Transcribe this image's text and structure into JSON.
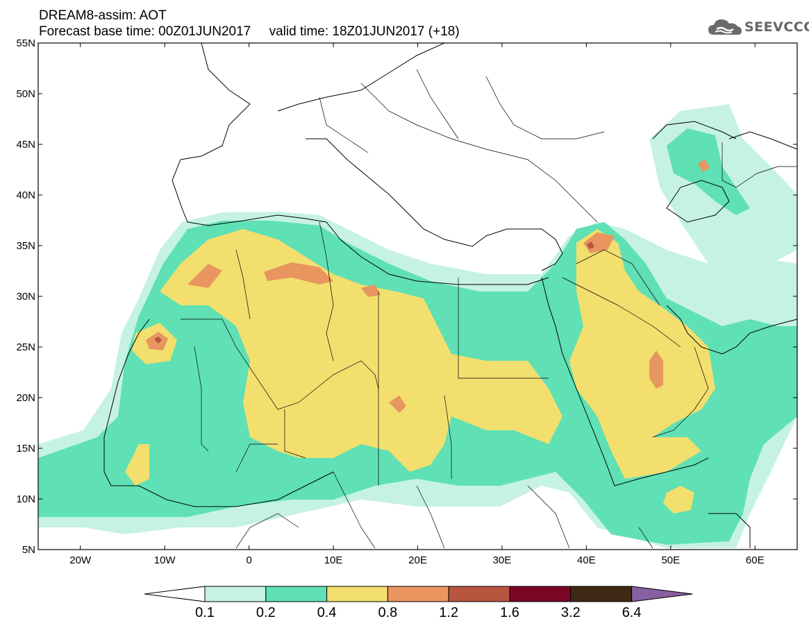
{
  "header": {
    "title_line1": "DREAM8-assim: AOT",
    "title_line2": "Forecast base time: 00Z01JUN2017     valid time: 18Z01JUN2017 (+18)"
  },
  "brand": {
    "name": "SEEVCCC",
    "icon": "cloud-icon"
  },
  "map": {
    "lon_range": [
      -25,
      65
    ],
    "lat_range": [
      5,
      55
    ],
    "lat_ticks": [
      "55N",
      "50N",
      "45N",
      "40N",
      "35N",
      "30N",
      "25N",
      "20N",
      "15N",
      "10N",
      "5N"
    ],
    "lon_ticks": [
      "20W",
      "10W",
      "0",
      "10E",
      "20E",
      "30E",
      "40E",
      "50E",
      "60E"
    ]
  },
  "colorbar": {
    "colors": [
      "#c6f2e6",
      "#5fe0b5",
      "#f2df6e",
      "#e89560",
      "#b8553f",
      "#7a0524",
      "#3e2914",
      "#8660a0"
    ],
    "labels": [
      "0.1",
      "0.2",
      "0.4",
      "0.8",
      "1.2",
      "1.6",
      "3.2",
      "6.4"
    ],
    "under_color": "#ffffff",
    "over_color": "#8660a0"
  }
}
